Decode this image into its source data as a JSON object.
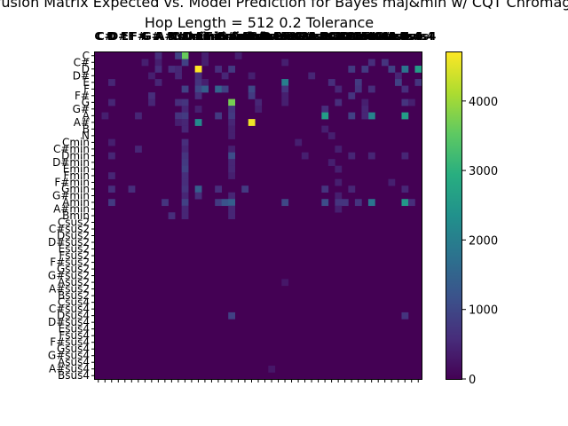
{
  "chart_data": {
    "type": "heatmap",
    "title": "Confusion Matrix Expected vs. Model Prediction for Bayes maj&min w/ CQT Chromagram",
    "subtitle": "Hop Length = 512 0.2 Tolerance",
    "xlabel": "",
    "ylabel": "",
    "x_labels": [
      "C",
      "C#",
      "D",
      "D#",
      "E",
      "F",
      "F#",
      "G",
      "G#",
      "A",
      "A#",
      "B",
      "N",
      "Cmin",
      "C#min",
      "Dmin",
      "D#min",
      "Emin",
      "Fmin",
      "F#min",
      "Gmin",
      "G#min",
      "Amin",
      "A#min",
      "Bmin",
      "Csus2",
      "C#sus2",
      "Dsus2",
      "D#sus2",
      "Esus2",
      "Fsus2",
      "F#sus2",
      "Gsus2",
      "G#sus2",
      "Asus2",
      "A#sus2",
      "Bsus2",
      "Csus4",
      "C#sus4",
      "Dsus4",
      "D#sus4",
      "Esus4",
      "Fsus4",
      "F#sus4",
      "Gsus4",
      "G#sus4",
      "Asus4",
      "A#sus4",
      "Bsus4"
    ],
    "y_labels": [
      "C",
      "C#",
      "D",
      "D#",
      "E",
      "F",
      "F#",
      "G",
      "G#",
      "A",
      "A#",
      "B",
      "N",
      "Cmin",
      "C#min",
      "Dmin",
      "D#min",
      "Emin",
      "Fmin",
      "F#min",
      "Gmin",
      "G#min",
      "Amin",
      "A#min",
      "Bmin",
      "Csus2",
      "C#sus2",
      "Dsus2",
      "D#sus2",
      "Esus2",
      "Fsus2",
      "F#sus2",
      "Gsus2",
      "G#sus2",
      "Asus2",
      "A#sus2",
      "Bsus2",
      "Csus4",
      "C#sus4",
      "Dsus4",
      "D#sus4",
      "Esus4",
      "Fsus4",
      "F#sus4",
      "Gsus4",
      "G#sus4",
      "Asus4",
      "A#sus4",
      "Bsus4"
    ],
    "colorbar": {
      "min": 0,
      "max": 4700,
      "ticks": [
        0,
        1000,
        2000,
        3000,
        4000
      ],
      "colormap": "viridis"
    },
    "cells": [
      [
        0,
        13,
        3600
      ],
      [
        0,
        12,
        900
      ],
      [
        0,
        9,
        600
      ],
      [
        0,
        21,
        400
      ],
      [
        0,
        16,
        400
      ],
      [
        1,
        13,
        900
      ],
      [
        1,
        7,
        400
      ],
      [
        1,
        9,
        400
      ],
      [
        1,
        16,
        400
      ],
      [
        1,
        28,
        400
      ],
      [
        1,
        41,
        600
      ],
      [
        1,
        43,
        700
      ],
      [
        2,
        15,
        4700
      ],
      [
        2,
        20,
        800
      ],
      [
        2,
        9,
        600
      ],
      [
        2,
        11,
        600
      ],
      [
        2,
        12,
        500
      ],
      [
        2,
        18,
        600
      ],
      [
        2,
        38,
        800
      ],
      [
        2,
        44,
        900
      ],
      [
        2,
        48,
        2600
      ],
      [
        2,
        46,
        1800
      ],
      [
        2,
        40,
        800
      ],
      [
        3,
        15,
        600
      ],
      [
        3,
        8,
        400
      ],
      [
        3,
        12,
        500
      ],
      [
        3,
        19,
        500
      ],
      [
        3,
        23,
        400
      ],
      [
        3,
        32,
        500
      ],
      [
        3,
        45,
        500
      ],
      [
        4,
        2,
        500
      ],
      [
        4,
        9,
        500
      ],
      [
        4,
        15,
        700
      ],
      [
        4,
        28,
        2000
      ],
      [
        4,
        35,
        600
      ],
      [
        4,
        39,
        800
      ],
      [
        4,
        45,
        900
      ],
      [
        4,
        48,
        700
      ],
      [
        4,
        16,
        400
      ],
      [
        5,
        13,
        900
      ],
      [
        5,
        15,
        1000
      ],
      [
        5,
        16,
        1400
      ],
      [
        5,
        18,
        1500
      ],
      [
        5,
        19,
        900
      ],
      [
        5,
        23,
        1000
      ],
      [
        5,
        28,
        700
      ],
      [
        5,
        36,
        500
      ],
      [
        5,
        39,
        700
      ],
      [
        5,
        41,
        600
      ],
      [
        5,
        46,
        600
      ],
      [
        6,
        15,
        600
      ],
      [
        6,
        8,
        600
      ],
      [
        6,
        23,
        800
      ],
      [
        6,
        28,
        400
      ],
      [
        6,
        38,
        700
      ],
      [
        7,
        2,
        500
      ],
      [
        7,
        8,
        500
      ],
      [
        7,
        12,
        600
      ],
      [
        7,
        13,
        700
      ],
      [
        7,
        20,
        3700
      ],
      [
        7,
        28,
        400
      ],
      [
        7,
        36,
        600
      ],
      [
        7,
        40,
        400
      ],
      [
        7,
        46,
        700
      ],
      [
        7,
        47,
        400
      ],
      [
        7,
        24,
        500
      ],
      [
        8,
        13,
        500
      ],
      [
        8,
        20,
        700
      ],
      [
        8,
        24,
        400
      ],
      [
        8,
        15,
        400
      ],
      [
        8,
        34,
        600
      ],
      [
        8,
        40,
        500
      ],
      [
        9,
        1,
        400
      ],
      [
        9,
        6,
        500
      ],
      [
        9,
        12,
        700
      ],
      [
        9,
        13,
        800
      ],
      [
        9,
        18,
        800
      ],
      [
        9,
        20,
        800
      ],
      [
        9,
        34,
        2600
      ],
      [
        9,
        38,
        900
      ],
      [
        9,
        41,
        2100
      ],
      [
        9,
        46,
        2600
      ],
      [
        9,
        40,
        500
      ],
      [
        10,
        15,
        2200
      ],
      [
        10,
        23,
        4600
      ],
      [
        10,
        12,
        400
      ],
      [
        10,
        20,
        500
      ],
      [
        10,
        13,
        500
      ],
      [
        11,
        13,
        500
      ],
      [
        11,
        20,
        400
      ],
      [
        11,
        34,
        400
      ],
      [
        12,
        20,
        400
      ],
      [
        12,
        35,
        400
      ],
      [
        13,
        2,
        400
      ],
      [
        13,
        13,
        600
      ],
      [
        13,
        30,
        400
      ],
      [
        14,
        6,
        500
      ],
      [
        14,
        13,
        500
      ],
      [
        14,
        20,
        400
      ],
      [
        14,
        36,
        400
      ],
      [
        15,
        2,
        500
      ],
      [
        15,
        13,
        700
      ],
      [
        15,
        20,
        1100
      ],
      [
        15,
        31,
        400
      ],
      [
        15,
        38,
        500
      ],
      [
        15,
        41,
        500
      ],
      [
        15,
        46,
        500
      ],
      [
        16,
        13,
        800
      ],
      [
        16,
        20,
        500
      ],
      [
        16,
        35,
        400
      ],
      [
        17,
        13,
        900
      ],
      [
        17,
        20,
        500
      ],
      [
        17,
        36,
        400
      ],
      [
        18,
        2,
        500
      ],
      [
        18,
        13,
        600
      ],
      [
        18,
        20,
        400
      ],
      [
        19,
        13,
        600
      ],
      [
        19,
        36,
        400
      ],
      [
        19,
        44,
        400
      ],
      [
        20,
        2,
        600
      ],
      [
        20,
        5,
        600
      ],
      [
        20,
        13,
        700
      ],
      [
        20,
        15,
        1400
      ],
      [
        20,
        18,
        600
      ],
      [
        20,
        22,
        800
      ],
      [
        20,
        34,
        700
      ],
      [
        20,
        38,
        500
      ],
      [
        20,
        46,
        500
      ],
      [
        21,
        13,
        500
      ],
      [
        21,
        15,
        600
      ],
      [
        21,
        20,
        500
      ],
      [
        21,
        36,
        400
      ],
      [
        22,
        2,
        800
      ],
      [
        22,
        10,
        700
      ],
      [
        22,
        13,
        900
      ],
      [
        22,
        18,
        800
      ],
      [
        22,
        19,
        1200
      ],
      [
        22,
        20,
        1400
      ],
      [
        22,
        28,
        1000
      ],
      [
        22,
        34,
        1100
      ],
      [
        22,
        37,
        700
      ],
      [
        22,
        39,
        700
      ],
      [
        22,
        41,
        1800
      ],
      [
        22,
        46,
        2500
      ],
      [
        22,
        47,
        600
      ],
      [
        22,
        36,
        700
      ],
      [
        23,
        13,
        500
      ],
      [
        23,
        20,
        500
      ],
      [
        23,
        36,
        400
      ],
      [
        24,
        11,
        600
      ],
      [
        24,
        13,
        500
      ],
      [
        24,
        20,
        500
      ],
      [
        34,
        28,
        300
      ],
      [
        39,
        20,
        900
      ],
      [
        39,
        46,
        700
      ],
      [
        47,
        26,
        300
      ]
    ]
  }
}
